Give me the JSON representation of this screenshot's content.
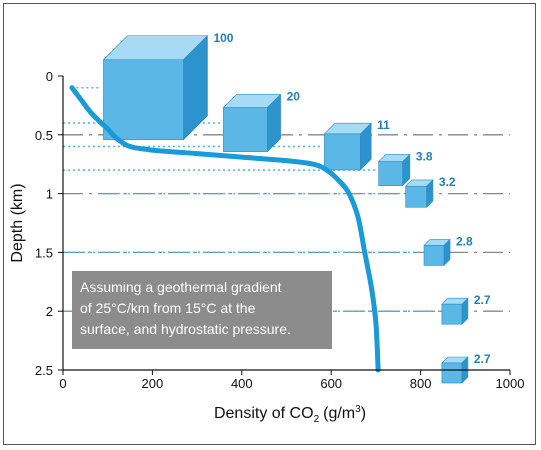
{
  "chart_data": {
    "type": "line",
    "xlabel": "Density of CO",
    "xlabel_subscript": "2",
    "xlabel_suffix": "(g/m",
    "xlabel_superscript": "3",
    "xlabel_close": ")",
    "ylabel": "Depth (km)",
    "xlim": [
      0,
      1000
    ],
    "ylim": [
      0,
      2.5
    ],
    "y_inverted": true,
    "x_ticks": [
      "0",
      "200",
      "400",
      "600",
      "800",
      "1000"
    ],
    "y_ticks": [
      "0",
      "0.5",
      "1",
      "1.5",
      "2",
      "2.5"
    ],
    "series": [
      {
        "x": [
          20,
          40,
          60,
          80,
          100,
          120,
          150,
          200,
          300,
          400,
          500,
          560,
          590,
          620,
          640,
          660,
          675,
          690,
          700,
          705
        ],
        "y": [
          0.1,
          0.2,
          0.3,
          0.38,
          0.45,
          0.53,
          0.6,
          0.63,
          0.66,
          0.69,
          0.72,
          0.75,
          0.8,
          0.9,
          1.0,
          1.2,
          1.5,
          1.8,
          2.1,
          2.5
        ]
      }
    ],
    "cubes": [
      {
        "label": "100",
        "depth": 0.1,
        "x": 180,
        "size": 80
      },
      {
        "label": "20",
        "depth": 0.4,
        "x": 408,
        "size": 44
      },
      {
        "label": "11",
        "depth": 0.6,
        "x": 625,
        "size": 36
      },
      {
        "label": "3.8",
        "depth": 0.8,
        "x": 733,
        "size": 24
      },
      {
        "label": "3.2",
        "depth": 1.0,
        "x": 790,
        "size": 21
      },
      {
        "label": "2.8",
        "depth": 1.5,
        "x": 830,
        "size": 20
      },
      {
        "label": "2.7",
        "depth": 2.0,
        "x": 870,
        "size": 20
      },
      {
        "label": "2.7",
        "depth": 2.5,
        "x": 870,
        "size": 20
      }
    ],
    "annotation": [
      "Assuming a geothermal gradient",
      "of 25°C/km from 15°C at the",
      "surface, and hydrostatic pressure."
    ],
    "colors": {
      "curve": "#1a9ad6",
      "cube_front": "#5bb8e6",
      "cube_top": "#a7dbf5",
      "cube_side": "#2d93cc",
      "dotted": "#4db3e6",
      "grid": "#888888",
      "note_bg": "#8c8c8c"
    }
  }
}
